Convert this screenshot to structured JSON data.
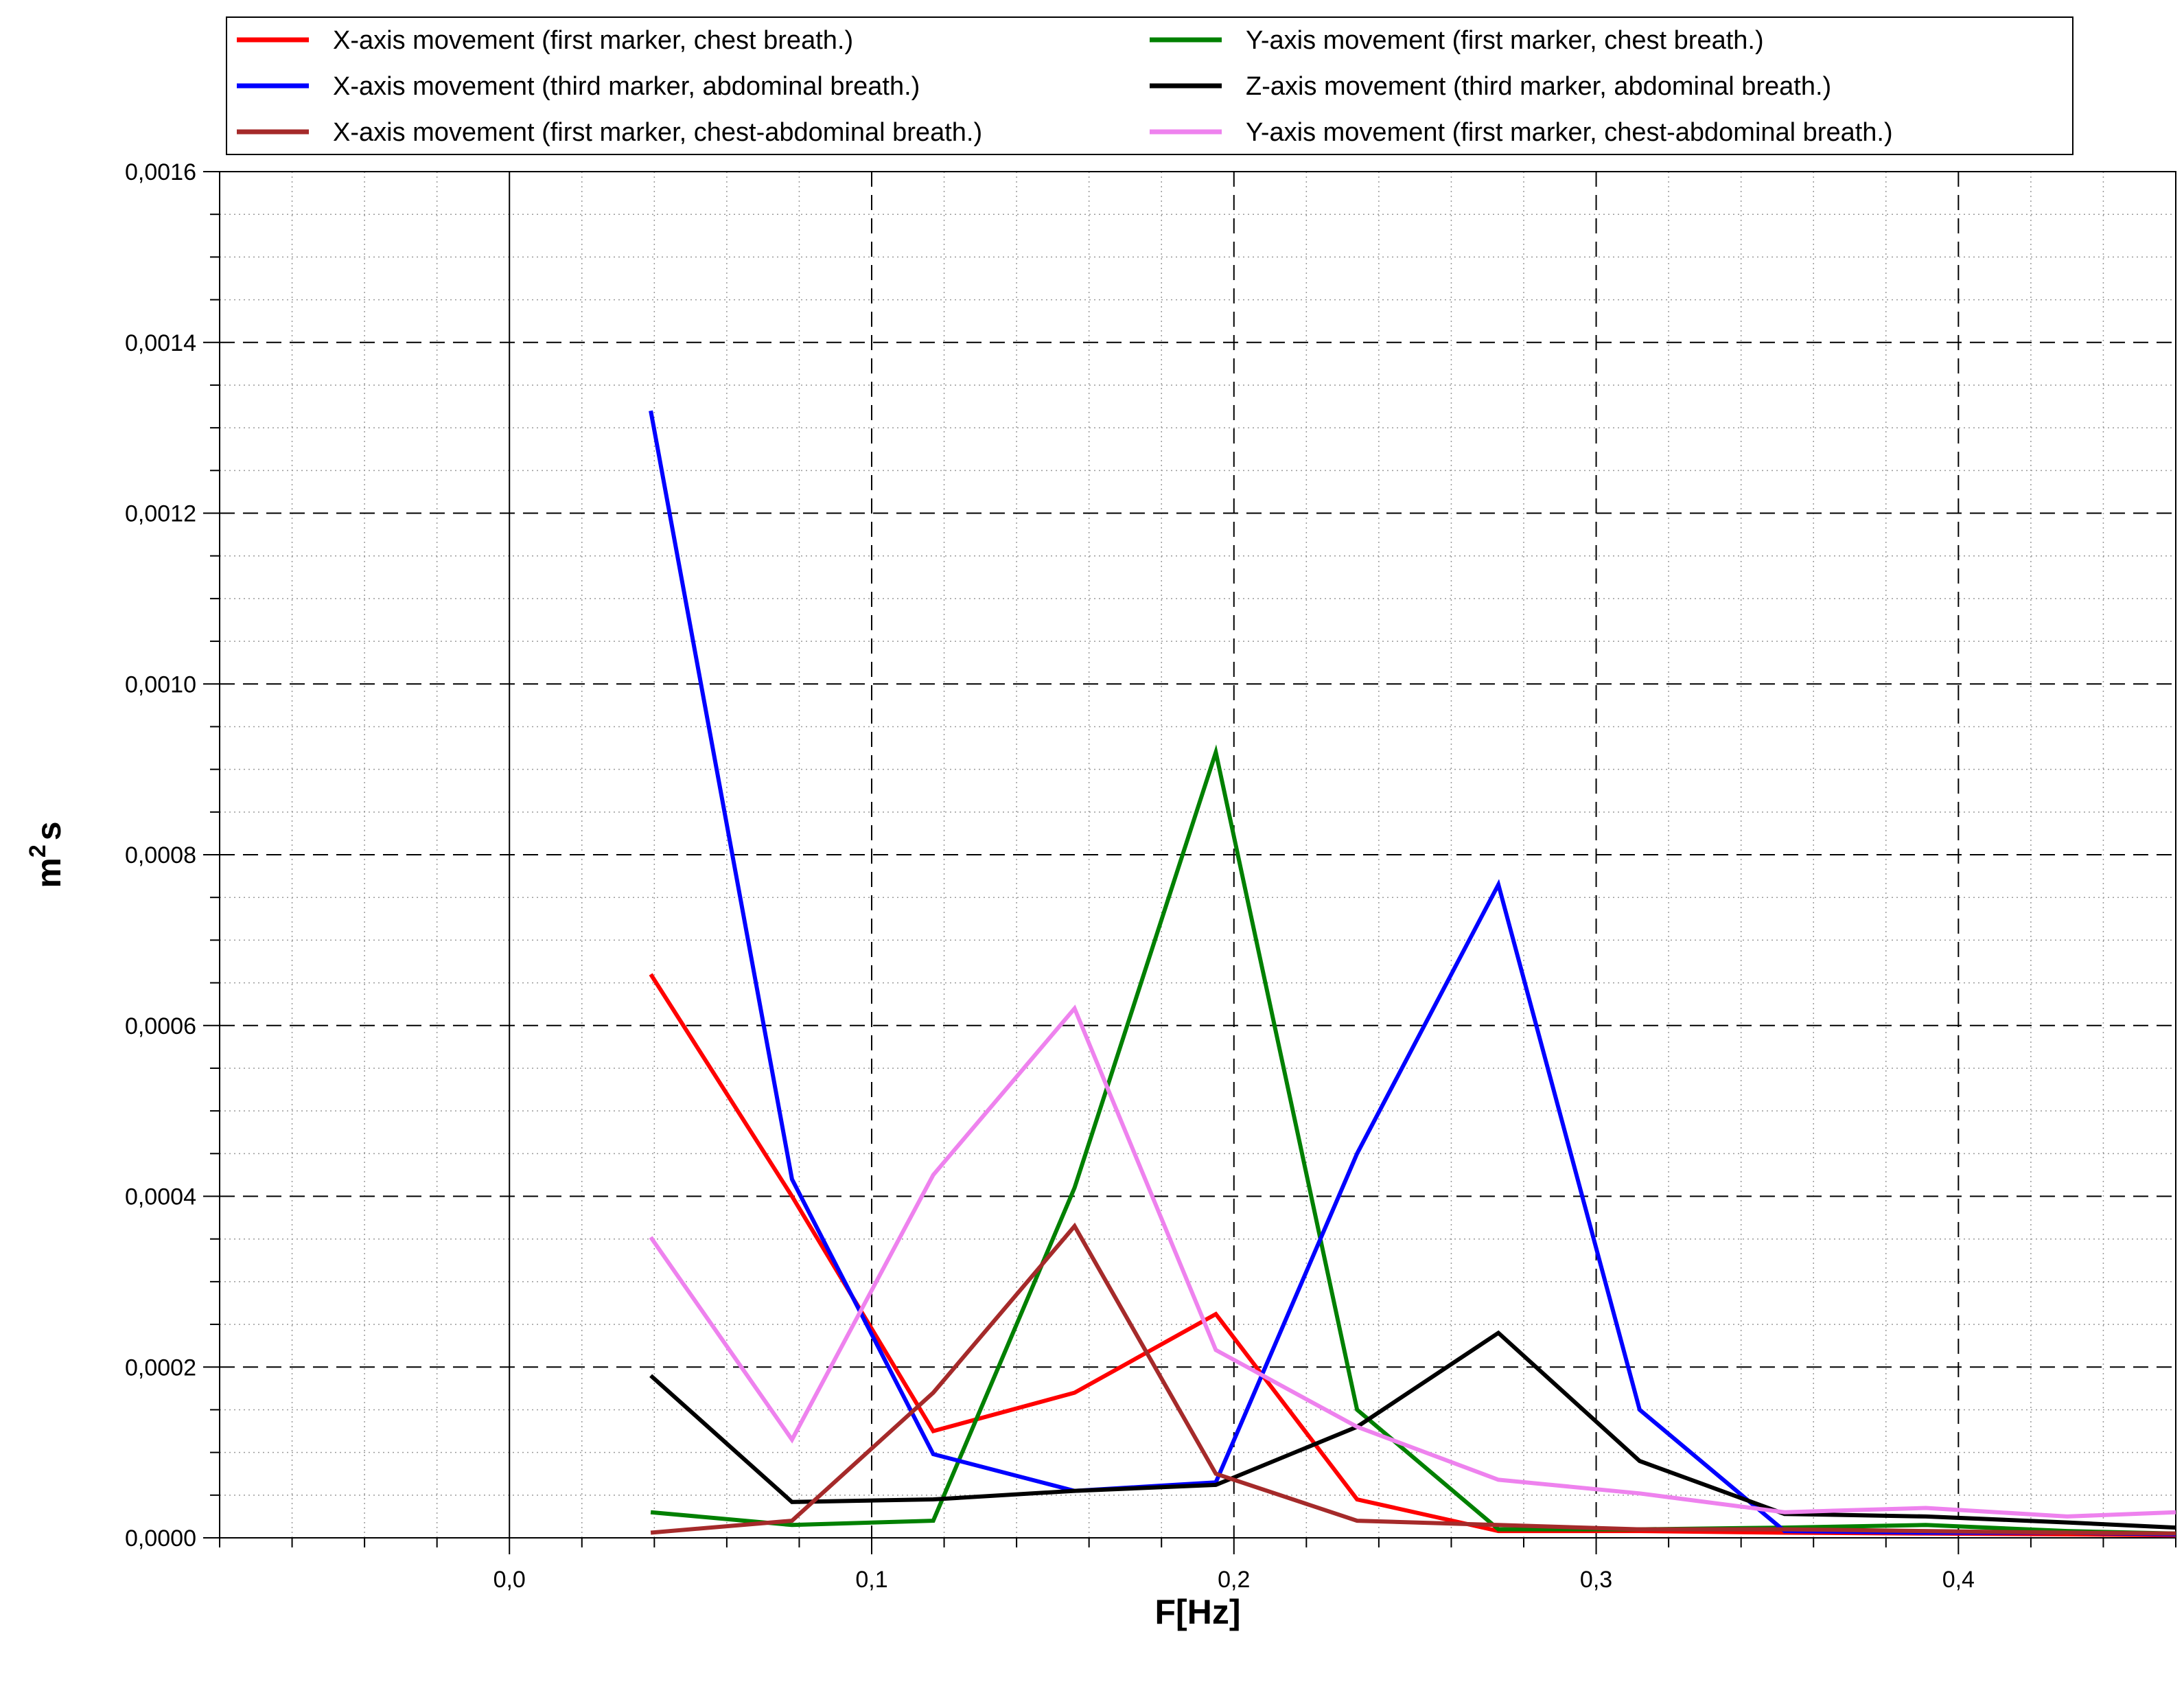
{
  "chart_data": {
    "type": "line",
    "title": "",
    "xlabel": "F[Hz]",
    "ylabel_base": "m",
    "ylabel_sup": "2",
    "ylabel_suffix": "s",
    "xlim": [
      -0.08,
      0.46
    ],
    "ylim": [
      0,
      0.0016
    ],
    "x_ticks": [
      {
        "value": 0.0,
        "label": "0,0"
      },
      {
        "value": 0.1,
        "label": "0,1"
      },
      {
        "value": 0.2,
        "label": "0,2"
      },
      {
        "value": 0.3,
        "label": "0,3"
      },
      {
        "value": 0.4,
        "label": "0,4"
      }
    ],
    "y_ticks": [
      {
        "value": 0.0,
        "label": "0,0000"
      },
      {
        "value": 0.0002,
        "label": "0,0002"
      },
      {
        "value": 0.0004,
        "label": "0,0004"
      },
      {
        "value": 0.0006,
        "label": "0,0006"
      },
      {
        "value": 0.0008,
        "label": "0,0008"
      },
      {
        "value": 0.001,
        "label": "0,0010"
      },
      {
        "value": 0.0012,
        "label": "0,0012"
      },
      {
        "value": 0.0014,
        "label": "0,0014"
      },
      {
        "value": 0.0016,
        "label": "0,0016"
      }
    ],
    "grid": true,
    "legend_position": "top",
    "x": [
      0.039,
      0.078,
      0.117,
      0.156,
      0.195,
      0.234,
      0.273,
      0.312,
      0.352,
      0.391,
      0.43,
      0.46
    ],
    "series": [
      {
        "name": "X-axis movement (first marker, chest breath.)",
        "color": "#ff0000",
        "values": [
          0.00066,
          0.0004,
          0.000125,
          0.00017,
          0.000262,
          4.5e-05,
          8e-06,
          8e-06,
          6e-06,
          5e-06,
          4e-06,
          3e-06
        ]
      },
      {
        "name": "Y-axis movement (first marker, chest breath.)",
        "color": "#008000",
        "values": [
          3e-05,
          1.5e-05,
          2e-05,
          0.00041,
          0.00092,
          0.00015,
          1e-05,
          1e-05,
          1.2e-05,
          1.5e-05,
          8e-06,
          5e-06
        ]
      },
      {
        "name": "X-axis movement (third marker, abdominal breath.)",
        "color": "#0000ff",
        "values": [
          0.00132,
          0.00042,
          9.8e-05,
          5.5e-05,
          6.5e-05,
          0.00045,
          0.000765,
          0.00015,
          8e-06,
          6e-06,
          6e-06,
          4e-06
        ]
      },
      {
        "name": "Z-axis movement (third marker, abdominal breath.)",
        "color": "#000000",
        "values": [
          0.00019,
          4.2e-05,
          4.5e-05,
          5.5e-05,
          6.2e-05,
          0.00013,
          0.00024,
          9e-05,
          2.8e-05,
          2.5e-05,
          1.8e-05,
          1.2e-05
        ]
      },
      {
        "name": "X-axis movement (first marker, chest-abdominal breath.)",
        "color": "#a52a2a",
        "values": [
          6e-06,
          2e-05,
          0.00017,
          0.000365,
          7.5e-05,
          2e-05,
          1.5e-05,
          1e-05,
          1e-05,
          8e-06,
          6e-06,
          5e-06
        ]
      },
      {
        "name": "Y-axis movement (first marker, chest-abdominal breath.)",
        "color": "#ee82ee",
        "values": [
          0.000352,
          0.000115,
          0.000425,
          0.00062,
          0.00022,
          0.00013,
          6.8e-05,
          5.2e-05,
          3e-05,
          3.5e-05,
          2.5e-05,
          3e-05
        ]
      }
    ]
  }
}
